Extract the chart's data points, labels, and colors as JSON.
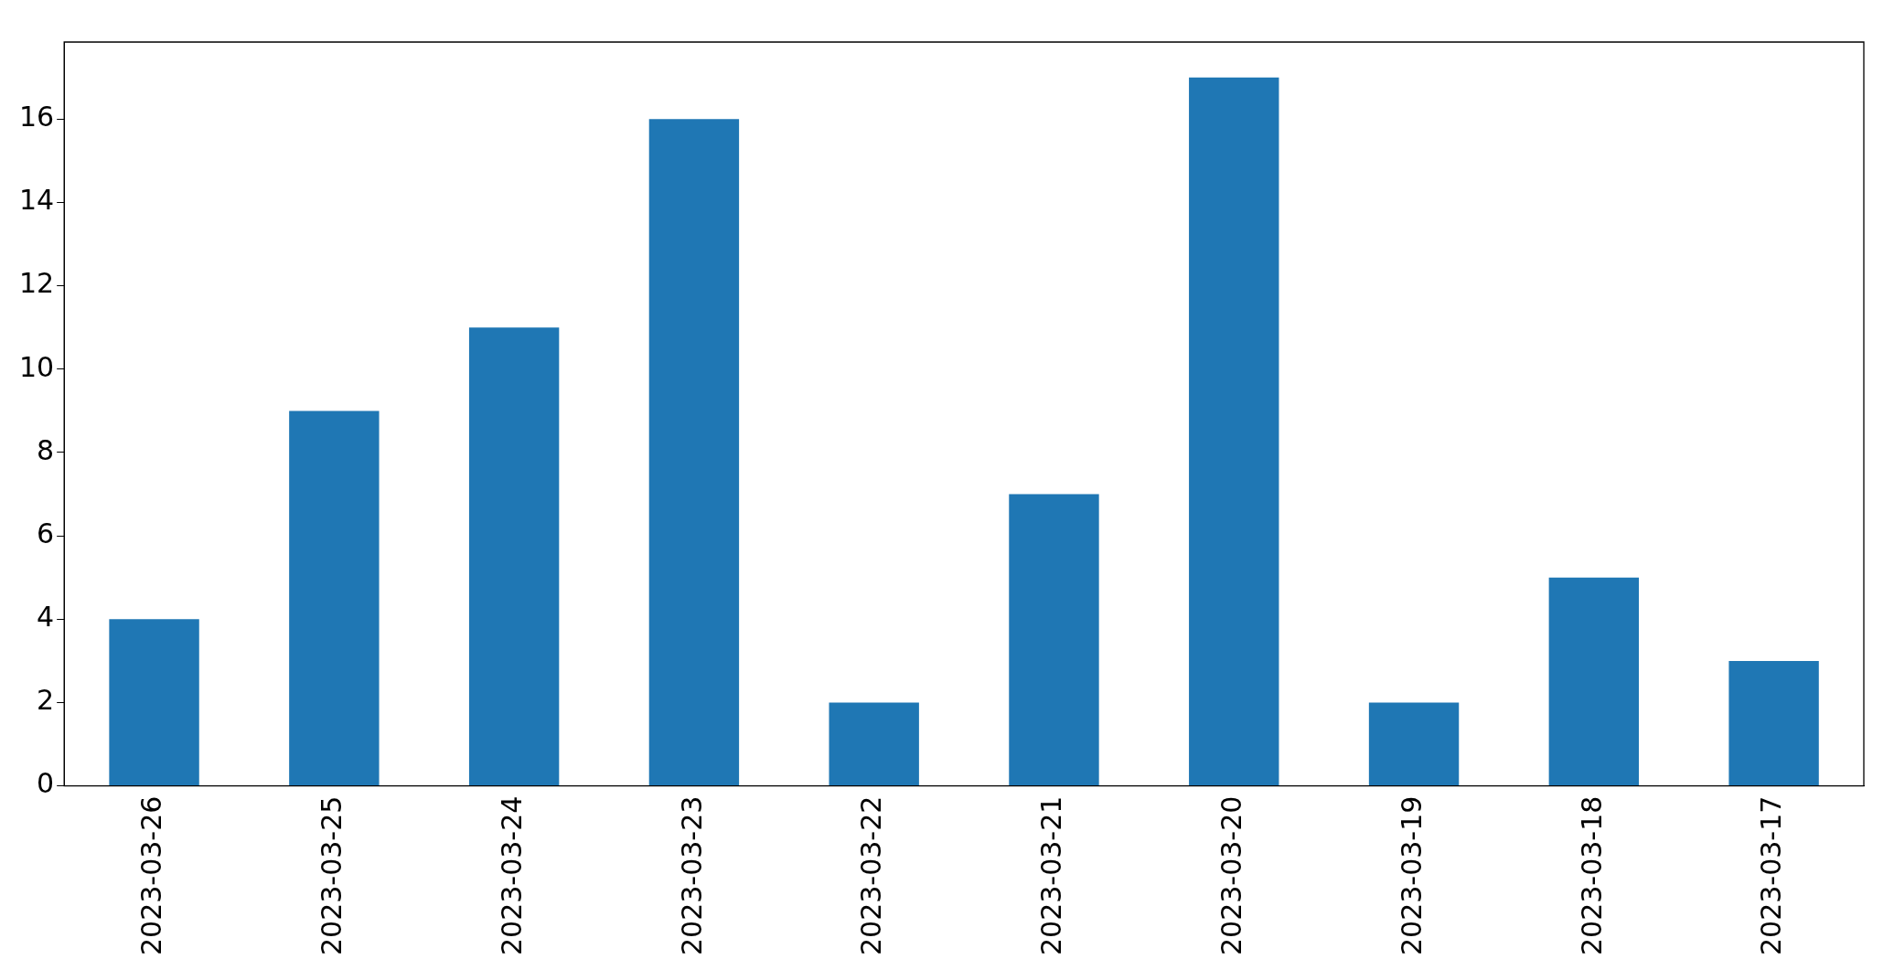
{
  "chart_data": {
    "type": "bar",
    "categories": [
      "2023-03-26",
      "2023-03-25",
      "2023-03-24",
      "2023-03-23",
      "2023-03-22",
      "2023-03-21",
      "2023-03-20",
      "2023-03-19",
      "2023-03-18",
      "2023-03-17"
    ],
    "values": [
      4,
      9,
      11,
      16,
      2,
      7,
      17,
      2,
      5,
      3
    ],
    "color": "#1f77b4",
    "ylim": [
      0,
      17.85
    ],
    "yticks": [
      0,
      2,
      4,
      6,
      8,
      10,
      12,
      14,
      16
    ],
    "grid": false,
    "legend": false
  }
}
